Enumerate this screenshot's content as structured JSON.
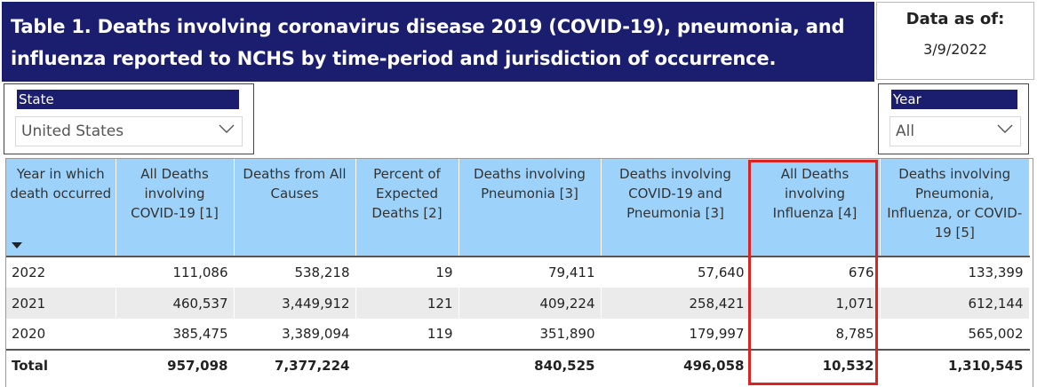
{
  "title": {
    "line1": "Table 1. Deaths involving coronavirus disease 2019 (COVID-19), pneumonia, and",
    "line2": "influenza reported to NCHS by time-period and jurisdiction of occurrence."
  },
  "as_of": {
    "label": "Data as of:",
    "date": "3/9/2022"
  },
  "filters": {
    "state": {
      "label": "State",
      "value": "United States",
      "icon": "chevron-down-icon"
    },
    "year": {
      "label": "Year",
      "value": "All",
      "icon": "chevron-down-icon"
    }
  },
  "table": {
    "columns": [
      "Year in which death occurred",
      "All Deaths involving COVID-19 [1]",
      "Deaths from All Causes",
      "Percent of Expected Deaths [2]",
      "Deaths involving Pneumonia [3]",
      "Deaths involving COVID-19 and Pneumonia [3]",
      "All Deaths involving Influenza [4]",
      "Deaths involving Pneumonia, Influenza, or COVID-19 [5]"
    ],
    "rows": [
      [
        "2022",
        "111,086",
        "538,218",
        "19",
        "79,411",
        "57,640",
        "676",
        "133,399"
      ],
      [
        "2021",
        "460,537",
        "3,449,912",
        "121",
        "409,224",
        "258,421",
        "1,071",
        "612,144"
      ],
      [
        "2020",
        "385,475",
        "3,389,094",
        "119",
        "351,890",
        "179,997",
        "8,785",
        "565,002"
      ]
    ],
    "total": [
      "Total",
      "957,098",
      "7,377,224",
      "",
      "840,525",
      "496,058",
      "10,532",
      "1,310,545"
    ],
    "sort_icon": "sort-descending-icon"
  },
  "colors": {
    "title_bg": "#1b1e6e",
    "header_bg": "#9dd3fb",
    "alt_row_bg": "#ebebeb",
    "highlight_border": "#dd2222"
  }
}
